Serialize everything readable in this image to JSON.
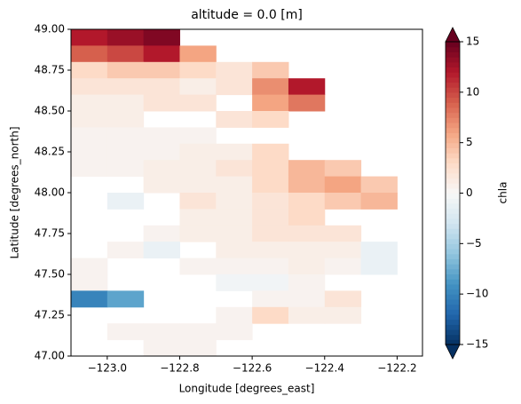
{
  "chart_data": {
    "type": "heatmap",
    "title": "altitude = 0.0 [m]",
    "x_label": "Longitude [degrees_east]",
    "y_label": "Latitude [degrees_north]",
    "colorbar_label": "chla",
    "colormap": "RdBu_r",
    "clim": [
      -15,
      15
    ],
    "cticks": [
      {
        "value": -15,
        "label": "−15"
      },
      {
        "value": -10,
        "label": "−10"
      },
      {
        "value": -5,
        "label": "−5"
      },
      0,
      5,
      10,
      15
    ],
    "xlim": [
      -123.1,
      -122.13
    ],
    "ylim": [
      47.0,
      49.0
    ],
    "xticks": [
      {
        "value": -123.0,
        "label": "−123.0"
      },
      {
        "value": -122.8,
        "label": "−122.8"
      },
      {
        "value": -122.6,
        "label": "−122.6"
      },
      {
        "value": -122.4,
        "label": "−122.4"
      },
      {
        "value": -122.2,
        "label": "−122.2"
      }
    ],
    "yticks": [
      {
        "value": 47.0,
        "label": "47.00"
      },
      {
        "value": 47.25,
        "label": "47.25"
      },
      {
        "value": 47.5,
        "label": "47.50"
      },
      {
        "value": 47.75,
        "label": "47.75"
      },
      {
        "value": 48.0,
        "label": "48.00"
      },
      {
        "value": 48.25,
        "label": "48.25"
      },
      {
        "value": 48.5,
        "label": "48.50"
      },
      {
        "value": 48.75,
        "label": "48.75"
      },
      {
        "value": 49.0,
        "label": "49.00"
      }
    ],
    "x": [
      -123.05,
      -122.95,
      -122.85,
      -122.75,
      -122.65,
      -122.55,
      -122.45,
      -122.35,
      -122.25,
      -122.15
    ],
    "y": [
      48.95,
      48.85,
      48.75,
      48.65,
      48.55,
      48.45,
      48.35,
      48.25,
      48.15,
      48.05,
      47.95,
      47.85,
      47.75,
      47.65,
      47.55,
      47.45,
      47.35,
      47.25,
      47.15,
      47.05
    ],
    "z": [
      [
        12,
        13,
        14,
        null,
        null,
        null,
        null,
        null,
        null,
        null
      ],
      [
        9,
        10,
        12,
        6,
        null,
        null,
        null,
        null,
        null,
        null
      ],
      [
        3,
        4,
        4,
        3,
        2,
        4,
        null,
        null,
        null,
        null
      ],
      [
        2,
        2,
        2,
        1,
        2,
        7,
        12,
        null,
        null,
        null
      ],
      [
        1,
        1,
        2,
        2,
        null,
        6,
        8,
        null,
        null,
        null
      ],
      [
        1,
        1,
        null,
        null,
        2,
        3,
        null,
        null,
        null,
        null
      ],
      [
        0.5,
        0.5,
        0.5,
        0.5,
        null,
        null,
        null,
        null,
        null,
        null
      ],
      [
        0.5,
        0.5,
        0.5,
        1,
        1,
        3,
        null,
        null,
        null,
        null
      ],
      [
        0.5,
        0.5,
        1,
        1,
        2,
        3,
        5,
        4,
        null,
        null
      ],
      [
        null,
        null,
        1,
        1,
        1,
        3,
        5,
        6,
        4,
        null
      ],
      [
        null,
        -1,
        null,
        2,
        1,
        2,
        3,
        4,
        5,
        null
      ],
      [
        null,
        null,
        null,
        1,
        1,
        2,
        3,
        null,
        null,
        null
      ],
      [
        null,
        null,
        0.5,
        1,
        1,
        2,
        2,
        2,
        null,
        null
      ],
      [
        null,
        0.5,
        -1,
        null,
        1,
        1,
        1,
        1,
        -1,
        null
      ],
      [
        0.5,
        null,
        null,
        0.5,
        0.5,
        0.5,
        1,
        0.5,
        -1,
        null
      ],
      [
        0.5,
        null,
        null,
        null,
        -0.5,
        -0.5,
        0.5,
        null,
        null,
        null
      ],
      [
        -10,
        -8,
        null,
        null,
        null,
        0.5,
        0.5,
        2,
        null,
        null
      ],
      [
        null,
        null,
        null,
        null,
        0.5,
        3,
        1,
        1,
        null,
        null
      ],
      [
        null,
        0.5,
        0.5,
        0.5,
        0.5,
        null,
        null,
        null,
        null,
        null
      ],
      [
        null,
        null,
        0.5,
        0.5,
        null,
        null,
        null,
        null,
        null,
        null
      ]
    ]
  }
}
